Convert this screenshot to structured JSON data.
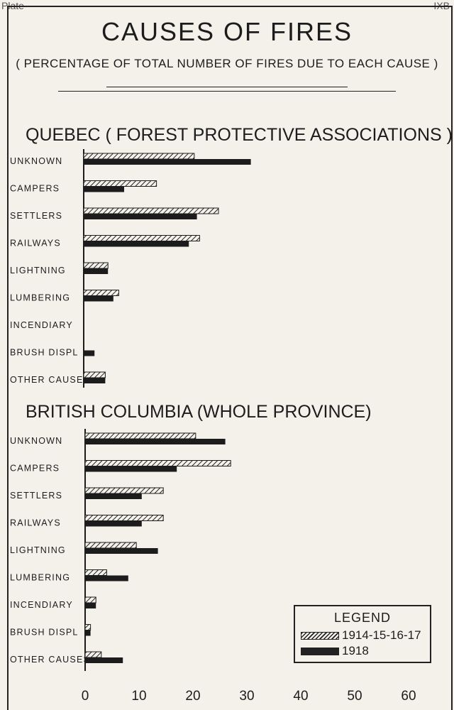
{
  "header": {
    "left": "Plate",
    "right": "IXB"
  },
  "title": "CAUSES OF FIRES",
  "subtitle": "( PERCENTAGE OF TOTAL NUMBER OF FIRES DUE TO EACH CAUSE )",
  "legend": {
    "title": "LEGEND",
    "items": [
      {
        "label": "1914-15-16-17",
        "style": "hatched"
      },
      {
        "label": "1918",
        "style": "solid"
      }
    ]
  },
  "colors": {
    "background": "#f3f1ea",
    "ink": "#1c1c1c"
  },
  "chart_data": [
    {
      "type": "bar",
      "orientation": "horizontal",
      "title": "QUEBEC ( FOREST PROTECTIVE ASSOCIATIONS )",
      "categories": [
        "UNKNOWN",
        "CAMPERS",
        "SETTLERS",
        "RAILWAYS",
        "LIGHTNING",
        "LUMBERING",
        "INCENDIARY",
        "BRUSH DISPL",
        "OTHER CAUSES"
      ],
      "series": [
        {
          "name": "1914-15-16-17",
          "values": [
            20.5,
            13.5,
            25,
            21.5,
            4.5,
            6.5,
            0,
            0,
            4
          ]
        },
        {
          "name": "1918",
          "values": [
            31,
            7.5,
            21,
            19.5,
            4.5,
            5.5,
            0,
            2,
            4
          ]
        }
      ],
      "xlim": [
        0,
        60
      ]
    },
    {
      "type": "bar",
      "orientation": "horizontal",
      "title": "BRITISH COLUMBIA (WHOLE PROVINCE)",
      "categories": [
        "UNKNOWN",
        "CAMPERS",
        "SETTLERS",
        "RAILWAYS",
        "LIGHTNING",
        "LUMBERING",
        "INCENDIARY",
        "BRUSH DISPL",
        "OTHER CAUSES"
      ],
      "series": [
        {
          "name": "1914-15-16-17",
          "values": [
            20.5,
            27,
            14.5,
            14.5,
            9.5,
            4,
            2,
            1,
            3
          ]
        },
        {
          "name": "1918",
          "values": [
            26,
            17,
            10.5,
            10.5,
            13.5,
            8,
            2,
            1,
            7
          ]
        }
      ],
      "xlim": [
        0,
        60
      ],
      "xticks": [
        0,
        10,
        20,
        30,
        40,
        50,
        60
      ]
    }
  ]
}
